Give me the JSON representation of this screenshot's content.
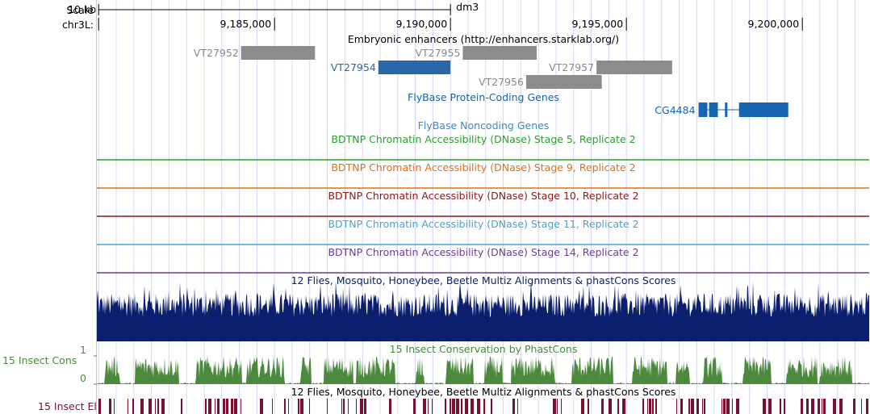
{
  "header": {
    "scale_label": "Scale",
    "chrom_label": "chr3L:",
    "scale_bar_text": "10 kb",
    "assembly": "dm3",
    "positions": [
      "9,185,000",
      "9,190,000",
      "9,195,000",
      "9,200,000"
    ]
  },
  "view": {
    "chrom": "chr3L",
    "start_bp": 9179950,
    "end_bp": 9201900
  },
  "scale_bar_bp": [
    9180000,
    9190000
  ],
  "tick_positions_bp": [
    9180000,
    9185000,
    9190000,
    9195000,
    9200000
  ],
  "grid": {
    "step_bp": 500
  },
  "enhancers": {
    "title": "Embryonic enhancers (http://enhancers.starklab.org/)",
    "items": [
      {
        "name": "VT27952",
        "start": 9184050,
        "end": 9186150,
        "selected": false
      },
      {
        "name": "VT27954",
        "start": 9187950,
        "end": 9190000,
        "selected": true
      },
      {
        "name": "VT27955",
        "start": 9190350,
        "end": 9192450,
        "selected": false
      },
      {
        "name": "VT27956",
        "start": 9192150,
        "end": 9194300,
        "selected": false
      },
      {
        "name": "VT27957",
        "start": 9194150,
        "end": 9196300,
        "selected": false
      }
    ]
  },
  "genes": {
    "title": "FlyBase Protein-Coding Genes",
    "items": [
      {
        "name": "CG4484",
        "start": 9197050,
        "end": 9199600,
        "exons": [
          [
            9197050,
            9197300
          ],
          [
            9197350,
            9197600
          ],
          [
            9197800,
            9197870
          ],
          [
            9198200,
            9199600
          ]
        ]
      }
    ]
  },
  "noncoding": {
    "title": "FlyBase Noncoding Genes"
  },
  "dnase_tracks": [
    {
      "title": "BDTNP Chromatin Accessibility (DNase) Stage 5, Replicate 2",
      "color": "#2ca02c"
    },
    {
      "title": "BDTNP Chromatin Accessibility (DNase) Stage 9, Replicate 2",
      "color": "#e0701a"
    },
    {
      "title": "BDTNP Chromatin Accessibility (DNase) Stage 10, Replicate 2",
      "color": "#8b1a1a"
    },
    {
      "title": "BDTNP Chromatin Accessibility (DNase) Stage 11, Replicate 2",
      "color": "#4aa3d4"
    },
    {
      "title": "BDTNP Chromatin Accessibility (DNase) Stage 14, Replicate 2",
      "color": "#6a3d9a"
    }
  ],
  "multiz": {
    "title": "12 Flies, Mosquito, Honeybee, Beetle Multiz Alignments & phastCons Scores",
    "color": "#0c1e6e"
  },
  "conservation": {
    "title": "15 Insect Conservation by PhastCons",
    "side_label": "15 Insect Cons",
    "y_max_label": "1",
    "y_min_label": "0",
    "color": "#4b8a3c"
  },
  "elements": {
    "title": "12 Flies, Mosquito, Honeybee, Beetle Multiz Alignments & phastCons Scores",
    "side_label": "15 Insect El",
    "color": "#7a1030"
  },
  "colors": {
    "grid": "#d6d6f4",
    "enhancer_gray": "#8c8c8c",
    "enhancer_selected": "#2b66a8",
    "gene_blue": "#1565b0",
    "axis": "#000000",
    "left_border": "#f0b8b8"
  }
}
